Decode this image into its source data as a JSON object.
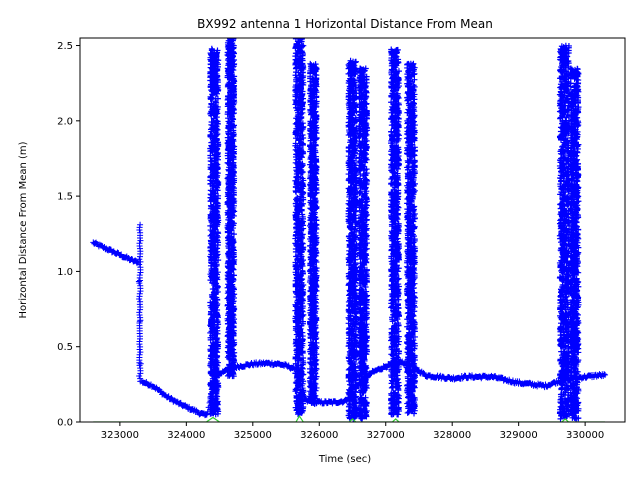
{
  "chart_data": {
    "type": "scatter",
    "title": "BX992 antenna 1 Horizontal Distance From Mean",
    "xlabel": "Time (sec)",
    "ylabel": "Horizontal Distance From Mean (m)",
    "xlim": [
      322400,
      330600
    ],
    "ylim": [
      0,
      2.55
    ],
    "xticks": [
      323000,
      324000,
      325000,
      326000,
      327000,
      328000,
      329000,
      330000
    ],
    "yticks": [
      0.0,
      0.5,
      1.0,
      1.5,
      2.0,
      2.5
    ],
    "xtick_labels": [
      "323000",
      "324000",
      "325000",
      "326000",
      "327000",
      "328000",
      "329000",
      "330000"
    ],
    "ytick_labels": [
      "0.0",
      "0.5",
      "1.0",
      "1.5",
      "2.0",
      "2.5"
    ],
    "grid": false,
    "legend": "none",
    "series": [
      {
        "marker": "+",
        "color": "#0000ff",
        "baseline": [
          [
            322600,
            1.19
          ],
          [
            322800,
            1.15
          ],
          [
            323000,
            1.11
          ],
          [
            323200,
            1.07
          ],
          [
            323280,
            1.06
          ],
          [
            323320,
            0.27
          ],
          [
            323500,
            0.24
          ],
          [
            323700,
            0.17
          ],
          [
            323900,
            0.12
          ],
          [
            324100,
            0.08
          ],
          [
            324300,
            0.04
          ],
          [
            324450,
            0.3
          ],
          [
            324600,
            0.35
          ],
          [
            324800,
            0.37
          ],
          [
            325000,
            0.385
          ],
          [
            325200,
            0.39
          ],
          [
            325400,
            0.385
          ],
          [
            325600,
            0.36
          ],
          [
            325700,
            0.29
          ],
          [
            325800,
            0.14
          ],
          [
            326000,
            0.13
          ],
          [
            326200,
            0.13
          ],
          [
            326400,
            0.14
          ],
          [
            326500,
            0.22
          ],
          [
            326800,
            0.33
          ],
          [
            327000,
            0.37
          ],
          [
            327200,
            0.4
          ],
          [
            327400,
            0.37
          ],
          [
            327600,
            0.31
          ],
          [
            327800,
            0.3
          ],
          [
            328000,
            0.29
          ],
          [
            328200,
            0.3
          ],
          [
            328400,
            0.3
          ],
          [
            328600,
            0.3
          ],
          [
            328800,
            0.28
          ],
          [
            329000,
            0.26
          ],
          [
            329200,
            0.25
          ],
          [
            329400,
            0.24
          ],
          [
            329600,
            0.27
          ],
          [
            329800,
            0.29
          ],
          [
            330000,
            0.3
          ],
          [
            330200,
            0.31
          ],
          [
            330300,
            0.31
          ]
        ],
        "bursts": [
          {
            "x": [
              324360,
              324480
            ],
            "y": [
              0.05,
              2.48
            ]
          },
          {
            "x": [
              324620,
              324720
            ],
            "y": [
              0.3,
              2.55
            ]
          },
          {
            "x": [
              325640,
              325760
            ],
            "y": [
              0.05,
              2.55
            ]
          },
          {
            "x": [
              325860,
              325960
            ],
            "y": [
              0.12,
              2.38
            ]
          },
          {
            "x": [
              326440,
              326560
            ],
            "y": [
              0.02,
              2.4
            ]
          },
          {
            "x": [
              326600,
              326720
            ],
            "y": [
              0.02,
              2.35
            ]
          },
          {
            "x": [
              327080,
              327200
            ],
            "y": [
              0.05,
              2.48
            ]
          },
          {
            "x": [
              327320,
              327440
            ],
            "y": [
              0.05,
              2.38
            ]
          },
          {
            "x": [
              329620,
              329760
            ],
            "y": [
              0.02,
              2.5
            ]
          },
          {
            "x": [
              329780,
              329900
            ],
            "y": [
              0.02,
              2.35
            ]
          }
        ],
        "jumps": [
          {
            "x": 323300,
            "y": [
              0.27,
              1.31
            ]
          }
        ]
      },
      {
        "marker": "line",
        "color": "#33cc33",
        "points": [
          [
            322600,
            0.0
          ],
          [
            324300,
            0.0
          ],
          [
            324400,
            0.03
          ],
          [
            324500,
            0.0
          ],
          [
            325650,
            0.0
          ],
          [
            325700,
            0.04
          ],
          [
            325760,
            0.0
          ],
          [
            326450,
            0.0
          ],
          [
            326500,
            0.02
          ],
          [
            326550,
            0.0
          ],
          [
            327100,
            0.0
          ],
          [
            327150,
            0.02
          ],
          [
            327200,
            0.0
          ],
          [
            329650,
            0.0
          ],
          [
            329700,
            0.02
          ],
          [
            329750,
            0.0
          ],
          [
            330300,
            0.0
          ]
        ]
      }
    ]
  }
}
